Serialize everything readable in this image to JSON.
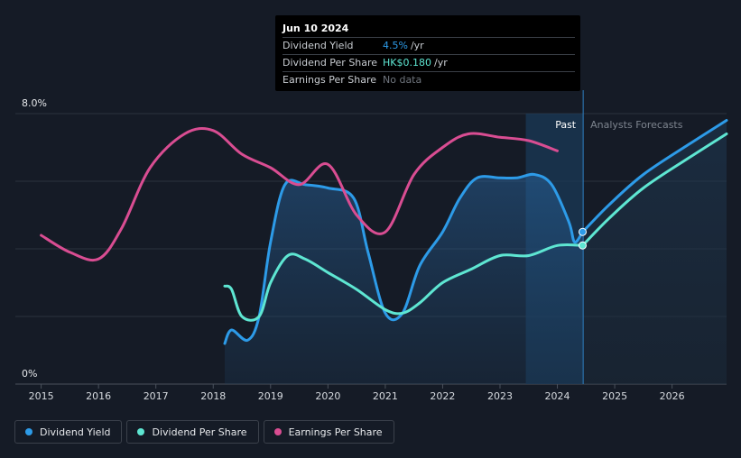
{
  "tooltip": {
    "date": "Jun 10 2024",
    "rows": [
      {
        "label": "Dividend Yield",
        "value": "4.5%",
        "unit": "/yr",
        "color": "#2d9be8"
      },
      {
        "label": "Dividend Per Share",
        "value": "HK$0.180",
        "unit": "/yr",
        "color": "#5ee6d2"
      },
      {
        "label": "Earnings Per Share",
        "value": "No data",
        "unit": "",
        "color": "#6f757d"
      }
    ]
  },
  "legend": [
    {
      "label": "Dividend Yield",
      "color": "#2d9be8"
    },
    {
      "label": "Dividend Per Share",
      "color": "#5ee6d2"
    },
    {
      "label": "Earnings Per Share",
      "color": "#d94d92"
    }
  ],
  "chart_data": {
    "type": "line",
    "y_top_label": "8.0%",
    "y_bottom_label": "0%",
    "ylim": [
      0,
      8
    ],
    "xlim": [
      2014.55,
      2026.95
    ],
    "x_ticks": [
      2015,
      2016,
      2017,
      2018,
      2019,
      2020,
      2021,
      2022,
      2023,
      2024,
      2025,
      2026
    ],
    "past_label": "Past",
    "forecast_label": "Analysts Forecasts",
    "past_region_start": 2023.45,
    "forecast_start": 2024.45,
    "gridlines": [
      2,
      4,
      6,
      8
    ],
    "series": [
      {
        "name": "Dividend Yield",
        "color": "#2d9be8",
        "filled": true,
        "points": [
          [
            2018.2,
            1.2
          ],
          [
            2018.32,
            1.6
          ],
          [
            2018.6,
            1.3
          ],
          [
            2018.8,
            2.0
          ],
          [
            2019.0,
            4.2
          ],
          [
            2019.25,
            5.9
          ],
          [
            2019.6,
            5.9
          ],
          [
            2020.0,
            5.8
          ],
          [
            2020.45,
            5.5
          ],
          [
            2020.7,
            3.9
          ],
          [
            2021.0,
            2.1
          ],
          [
            2021.3,
            2.1
          ],
          [
            2021.6,
            3.5
          ],
          [
            2022.0,
            4.5
          ],
          [
            2022.3,
            5.5
          ],
          [
            2022.6,
            6.1
          ],
          [
            2023.0,
            6.1
          ],
          [
            2023.3,
            6.1
          ],
          [
            2023.6,
            6.2
          ],
          [
            2023.9,
            5.9
          ],
          [
            2024.2,
            4.8
          ],
          [
            2024.3,
            4.2
          ],
          [
            2024.44,
            4.5
          ]
        ]
      },
      {
        "name": "Dividend Yield Forecast",
        "color": "#2d9be8",
        "filled": false,
        "points": [
          [
            2024.44,
            4.5
          ],
          [
            2024.9,
            5.3
          ],
          [
            2025.5,
            6.2
          ],
          [
            2026.3,
            7.1
          ],
          [
            2026.95,
            7.8
          ]
        ]
      },
      {
        "name": "Dividend Per Share",
        "color": "#5ee6d2",
        "filled": false,
        "points": [
          [
            2018.2,
            2.9
          ],
          [
            2018.32,
            2.8
          ],
          [
            2018.5,
            2.0
          ],
          [
            2018.8,
            2.0
          ],
          [
            2019.0,
            3.0
          ],
          [
            2019.3,
            3.8
          ],
          [
            2019.6,
            3.7
          ],
          [
            2020.0,
            3.3
          ],
          [
            2020.5,
            2.8
          ],
          [
            2021.0,
            2.2
          ],
          [
            2021.3,
            2.1
          ],
          [
            2021.6,
            2.4
          ],
          [
            2022.0,
            3.0
          ],
          [
            2022.5,
            3.4
          ],
          [
            2023.0,
            3.8
          ],
          [
            2023.5,
            3.8
          ],
          [
            2024.0,
            4.1
          ],
          [
            2024.44,
            4.1
          ]
        ]
      },
      {
        "name": "Dividend Per Share Forecast",
        "color": "#5ee6d2",
        "filled": false,
        "points": [
          [
            2024.44,
            4.1
          ],
          [
            2024.9,
            4.9
          ],
          [
            2025.5,
            5.8
          ],
          [
            2026.3,
            6.7
          ],
          [
            2026.95,
            7.4
          ]
        ]
      },
      {
        "name": "Earnings Per Share",
        "color": "#d94d92",
        "filled": false,
        "points": [
          [
            2015.0,
            4.4
          ],
          [
            2015.5,
            3.9
          ],
          [
            2016.0,
            3.7
          ],
          [
            2016.4,
            4.6
          ],
          [
            2016.9,
            6.4
          ],
          [
            2017.5,
            7.4
          ],
          [
            2018.0,
            7.5
          ],
          [
            2018.5,
            6.8
          ],
          [
            2019.0,
            6.4
          ],
          [
            2019.5,
            5.9
          ],
          [
            2020.0,
            6.5
          ],
          [
            2020.5,
            5.0
          ],
          [
            2021.0,
            4.5
          ],
          [
            2021.5,
            6.2
          ],
          [
            2022.0,
            7.0
          ],
          [
            2022.45,
            7.4
          ],
          [
            2023.0,
            7.3
          ],
          [
            2023.5,
            7.2
          ],
          [
            2024.0,
            6.9
          ]
        ]
      }
    ]
  }
}
